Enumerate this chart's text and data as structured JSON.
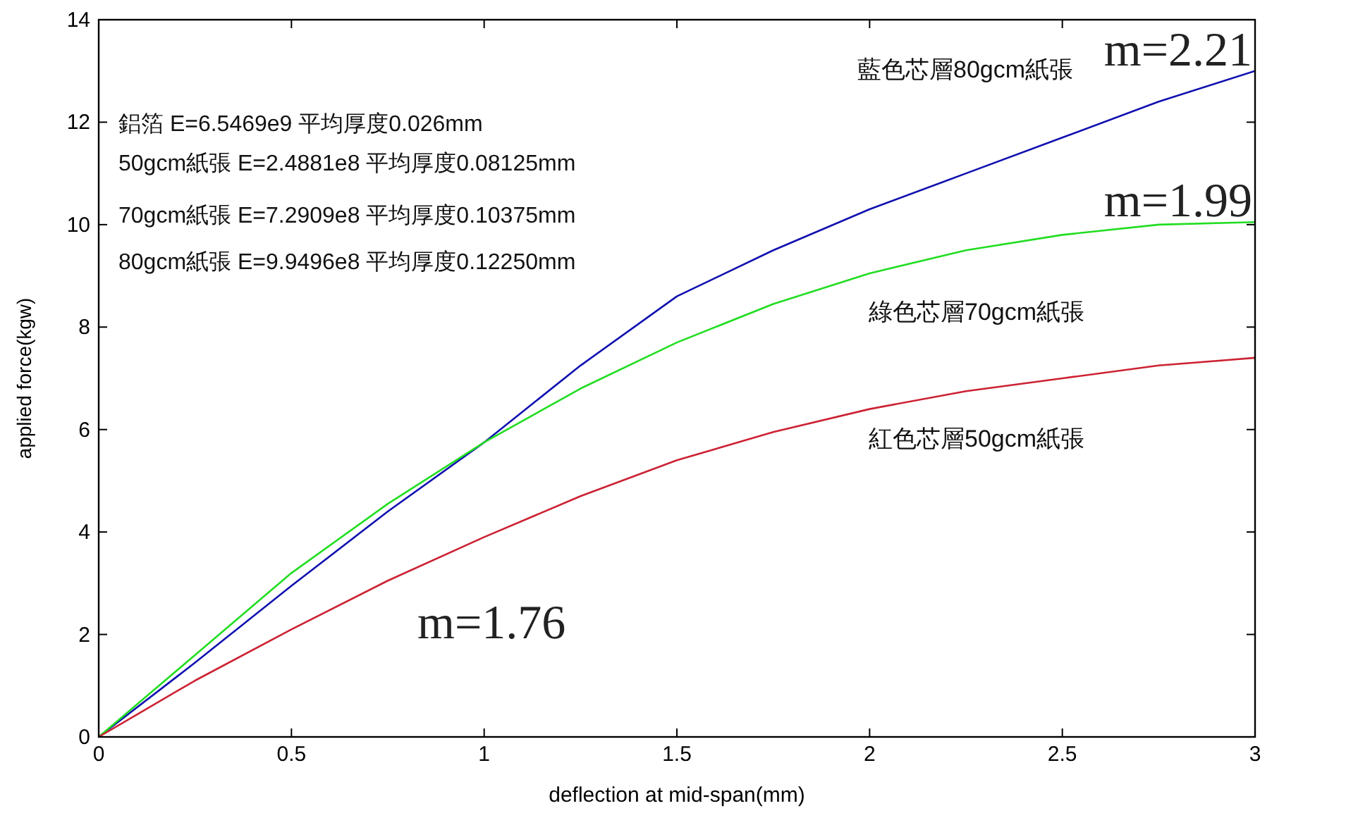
{
  "chart_data": {
    "type": "line",
    "xlabel": "deflection at mid-span(mm)",
    "ylabel": "applied force(kgw)",
    "x": [
      0,
      0.25,
      0.5,
      0.75,
      1,
      1.25,
      1.5,
      1.75,
      2,
      2.25,
      2.5,
      2.75,
      3
    ],
    "series": [
      {
        "name": "藍色芯層80gcm紙張",
        "color": "#1010b0",
        "values": [
          0,
          1.45,
          2.95,
          4.4,
          5.75,
          7.25,
          8.6,
          9.5,
          10.3,
          11.0,
          11.7,
          12.4,
          13.0
        ]
      },
      {
        "name": "綠色芯層70gcm紙張",
        "color": "#22dd22",
        "values": [
          0,
          1.6,
          3.2,
          4.55,
          5.75,
          6.8,
          7.7,
          8.45,
          9.05,
          9.5,
          9.8,
          10.0,
          10.05
        ]
      },
      {
        "name": "紅色芯層50gcm紙張",
        "color": "#cc2233",
        "values": [
          0,
          1.1,
          2.1,
          3.05,
          3.9,
          4.7,
          5.4,
          5.95,
          6.4,
          6.75,
          7.0,
          7.25,
          7.4
        ]
      }
    ],
    "annotations": [
      "鋁箔 E=6.5469e9  平均厚度0.026mm",
      "50gcm紙張 E=2.4881e8  平均厚度0.08125mm",
      "70gcm紙張 E=7.2909e8  平均厚度0.10375mm",
      "80gcm紙張 E=9.9496e8  平均厚度0.12250mm",
      {
        "text": "m=2.21",
        "x": 3,
        "y": 13.0
      },
      {
        "text": "m=1.99",
        "x": 3,
        "y": 10.05
      },
      "m=1.76"
    ],
    "xlim": [
      0,
      3
    ],
    "ylim": [
      0,
      14
    ],
    "xticks": [
      0,
      0.5,
      1,
      1.5,
      2,
      2.5,
      3
    ],
    "yticks": [
      0,
      2,
      4,
      6,
      8,
      10,
      12,
      14
    ],
    "grid": false
  }
}
